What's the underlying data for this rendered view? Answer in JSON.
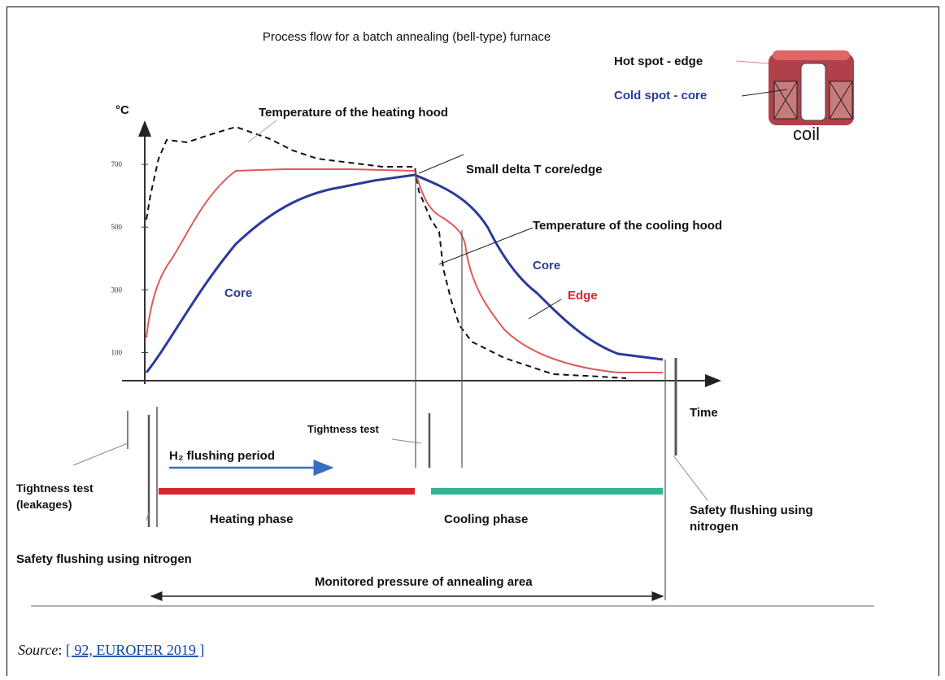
{
  "title": "Process flow for a batch annealing (bell-type) furnace",
  "y_axis": {
    "label": "°C",
    "ylim": [
      0,
      900
    ],
    "yticks": [
      100,
      300,
      500,
      700
    ]
  },
  "x_axis": {
    "label": "Time"
  },
  "coil": {
    "hot_spot": "Hot spot - edge",
    "cold_spot": "Cold spot - core",
    "label": "coil"
  },
  "annotations": {
    "heating_hood": "Temperature of the heating hood",
    "small_delta": "Small delta T core/edge",
    "cooling_hood": "Temperature of the cooling hood",
    "core_left": "Core",
    "core_right": "Core",
    "edge": "Edge"
  },
  "phases": {
    "tightness_test_leakages": "Tightness test (leakages)",
    "tightness_test": "Tightness test",
    "h2_flushing": "H₂ flushing period",
    "heating_phase": "Heating phase",
    "cooling_phase": "Cooling phase",
    "safety_flushing_left": "Safety flushing using nitrogen",
    "safety_flushing_right": "Safety flushing using nitrogen",
    "monitored_pressure": "Monitored pressure of annealing area"
  },
  "source": {
    "label": "Source",
    "separator": ":",
    "reference": "[ 92, EUROFER 2019 ]"
  }
}
